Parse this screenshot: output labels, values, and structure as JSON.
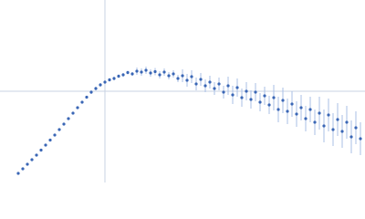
{
  "chart_data": {
    "type": "scatter",
    "color": "#3a66b5",
    "error_color": "#a9bfe6",
    "xlim": [
      0,
      400
    ],
    "ylim": [
      0,
      200
    ],
    "reference_x": 115,
    "reference_y": 100,
    "reference_color": "#c9d3e3",
    "x": [
      20,
      25,
      30,
      35,
      40,
      45,
      50,
      55,
      60,
      65,
      70,
      75,
      80,
      85,
      90,
      95,
      100,
      105,
      110,
      115,
      120,
      125,
      130,
      135,
      140,
      145,
      150,
      155,
      160,
      165,
      170,
      175,
      180,
      185,
      190,
      195,
      200,
      205,
      210,
      215,
      220,
      225,
      230,
      235,
      240,
      245,
      250,
      255,
      260,
      265,
      270,
      275,
      280,
      285,
      290,
      295,
      300,
      305,
      310,
      315,
      320,
      325,
      330,
      335,
      340,
      345,
      350,
      355,
      360,
      365,
      370,
      375,
      380,
      385,
      390,
      395
    ],
    "values": [
      10,
      15,
      20,
      25,
      30,
      35.5,
      41,
      46.5,
      52,
      58,
      64,
      70,
      76,
      82,
      88,
      93.5,
      99,
      103,
      107,
      110,
      112.5,
      114,
      116.5,
      118,
      120.5,
      119,
      122,
      121,
      123,
      120,
      121.5,
      118,
      121,
      117,
      119,
      114,
      117,
      112,
      116,
      108,
      113,
      106,
      110,
      103,
      108,
      99,
      106,
      96,
      104,
      93,
      100,
      91,
      99,
      88,
      95,
      85,
      93,
      80,
      90,
      78,
      86,
      75,
      82,
      70,
      80,
      66,
      76,
      62,
      74,
      58,
      69,
      56,
      66,
      50,
      60,
      48
    ],
    "errors": [
      1,
      1,
      1,
      1,
      1,
      1,
      1,
      1,
      1,
      1,
      1,
      1,
      1,
      1,
      1,
      1,
      2,
      2,
      2,
      2,
      2,
      2,
      2,
      2,
      2,
      2,
      4,
      4,
      4,
      4,
      4,
      4,
      4,
      4,
      4,
      4,
      7,
      7,
      7,
      7,
      7,
      7,
      7,
      7,
      7,
      7,
      10,
      10,
      10,
      10,
      10,
      10,
      10,
      10,
      10,
      10,
      14,
      14,
      14,
      14,
      14,
      14,
      14,
      14,
      14,
      14,
      18,
      18,
      18,
      18,
      18,
      18,
      18,
      18,
      18,
      18
    ]
  }
}
